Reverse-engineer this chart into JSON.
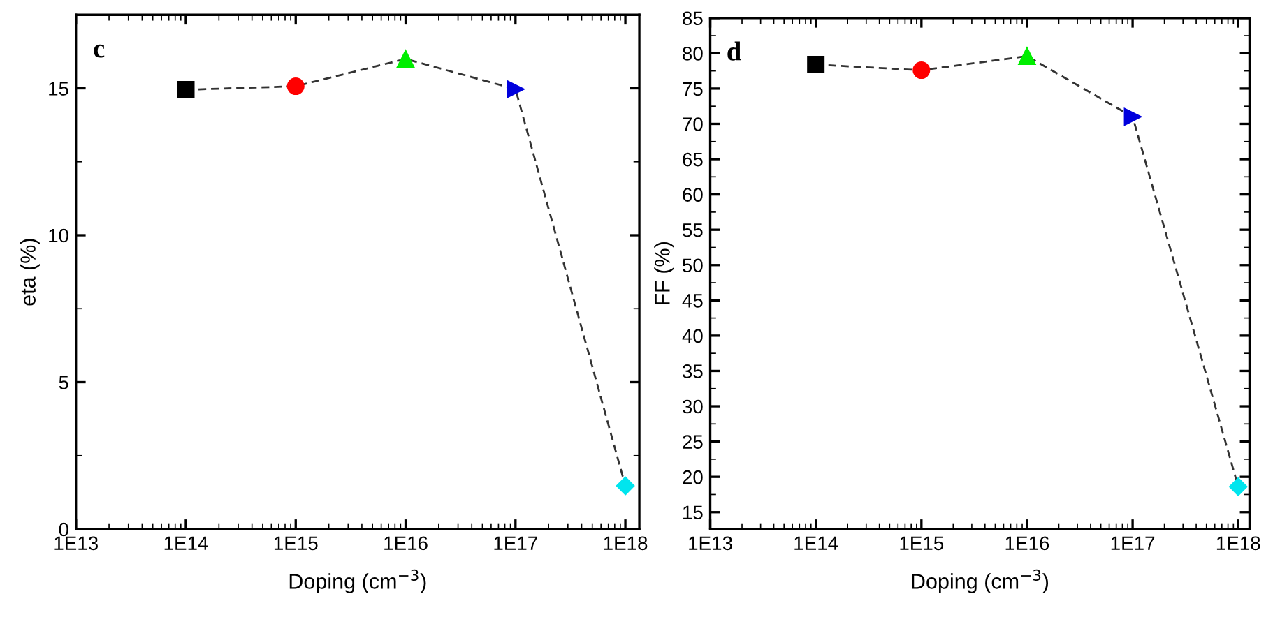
{
  "chart_data": [
    {
      "type": "line",
      "xlabel": "Doping (cm$^{−3}$)",
      "ylabel": "eta (%)",
      "annotations": [
        "c"
      ],
      "log": "x",
      "grid": false,
      "legend": false,
      "xlim": [
        10000000000000.0,
        1.34e+18
      ],
      "xticks": [
        {
          "value": 10000000000000.0,
          "label": "1E13"
        },
        {
          "value": 100000000000000.0,
          "label": "1E14"
        },
        {
          "value": 1000000000000000.0,
          "label": "1E15"
        },
        {
          "value": 1e+16,
          "label": "1E16"
        },
        {
          "value": 1e+17,
          "label": "1E17"
        },
        {
          "value": 1e+18,
          "label": "1E18"
        }
      ],
      "ylim": [
        0,
        17.5
      ],
      "yticks": [
        0,
        5,
        10,
        15
      ],
      "x": [
        100000000000000.0,
        1000000000000000.0,
        1e+16,
        1e+17,
        1e+18
      ],
      "series": [
        {
          "color": "#333333",
          "line_style": "dashed",
          "marker": "none",
          "values": [
            14.95,
            15.07,
            16.0,
            14.97,
            1.47
          ]
        },
        {
          "type": "scatter",
          "x": [
            100000000000000.0
          ],
          "color": "#000000",
          "marker": "square",
          "values": [
            14.95
          ]
        },
        {
          "type": "scatter",
          "x": [
            1000000000000000.0
          ],
          "color": "#ff0000",
          "marker": "circle",
          "values": [
            15.07
          ]
        },
        {
          "type": "scatter",
          "x": [
            1e+16
          ],
          "color": "#00ee00",
          "marker": "triangle",
          "values": [
            16.0
          ]
        },
        {
          "type": "scatter",
          "x": [
            1e+17
          ],
          "color": "#0000dd",
          "marker": "triangle-right",
          "values": [
            14.97
          ]
        },
        {
          "type": "scatter",
          "x": [
            1e+18
          ],
          "color": "#00e5ee",
          "marker": "diamond",
          "values": [
            1.47
          ]
        }
      ]
    },
    {
      "type": "line",
      "xlabel": "Doping (cm$^{−3}$)",
      "ylabel": "FF (%)",
      "annotations": [
        "d"
      ],
      "log": "x",
      "grid": false,
      "legend": false,
      "xlim": [
        10000000000000.0,
        1.28e+18
      ],
      "xticks": [
        {
          "value": 10000000000000.0,
          "label": "1E13"
        },
        {
          "value": 100000000000000.0,
          "label": "1E14"
        },
        {
          "value": 1000000000000000.0,
          "label": "1E15"
        },
        {
          "value": 1e+16,
          "label": "1E16"
        },
        {
          "value": 1e+17,
          "label": "1E17"
        },
        {
          "value": 1e+18,
          "label": "1E18"
        }
      ],
      "ylim": [
        12.6,
        85
      ],
      "yticks": [
        15,
        20,
        25,
        30,
        35,
        40,
        45,
        50,
        55,
        60,
        65,
        70,
        75,
        80,
        85
      ],
      "x": [
        100000000000000.0,
        1000000000000000.0,
        1e+16,
        1e+17,
        1e+18
      ],
      "series": [
        {
          "color": "#333333",
          "line_style": "dashed",
          "marker": "none",
          "values": [
            78.4,
            77.6,
            79.6,
            71.0,
            18.6
          ]
        },
        {
          "type": "scatter",
          "x": [
            100000000000000.0
          ],
          "color": "#000000",
          "marker": "square",
          "values": [
            78.4
          ]
        },
        {
          "type": "scatter",
          "x": [
            1000000000000000.0
          ],
          "color": "#ff0000",
          "marker": "circle",
          "values": [
            77.6
          ]
        },
        {
          "type": "scatter",
          "x": [
            1e+16
          ],
          "color": "#00ee00",
          "marker": "triangle",
          "values": [
            79.6
          ]
        },
        {
          "type": "scatter",
          "x": [
            1e+17
          ],
          "color": "#0000dd",
          "marker": "triangle-right",
          "values": [
            71.0
          ]
        },
        {
          "type": "scatter",
          "x": [
            1e+18
          ],
          "color": "#00e5ee",
          "marker": "diamond",
          "values": [
            18.6
          ]
        }
      ]
    }
  ]
}
